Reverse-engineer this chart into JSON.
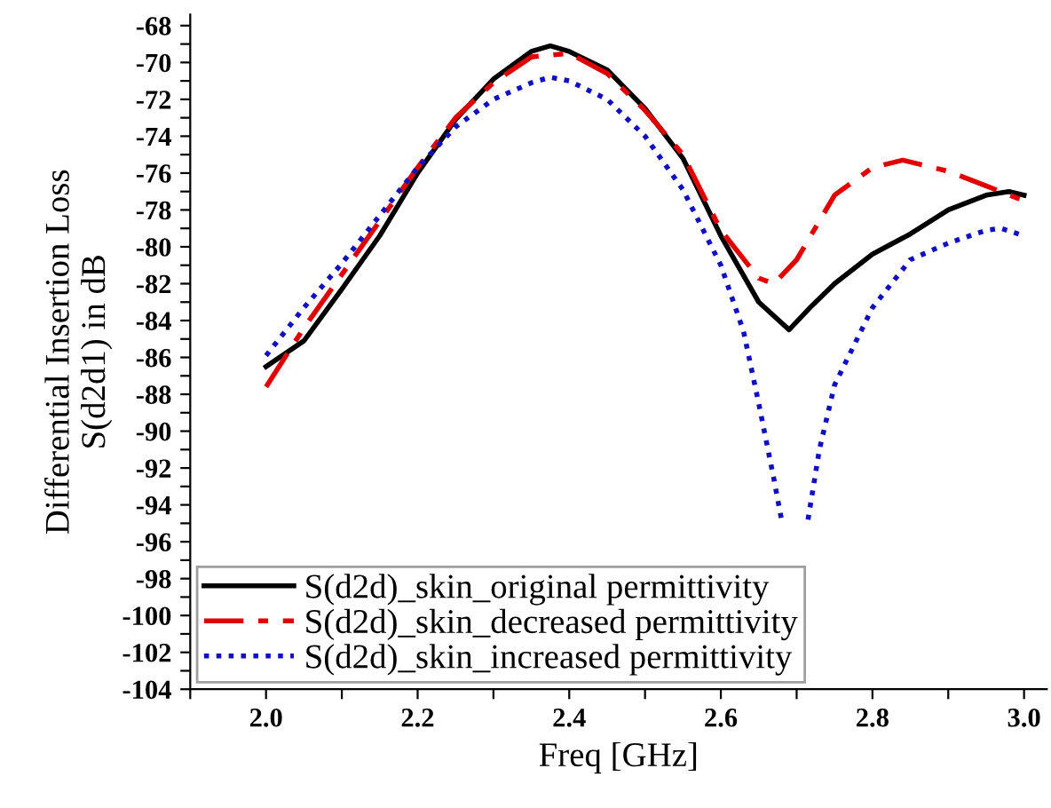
{
  "chart_data": {
    "type": "line",
    "xlabel": "Freq [GHz]",
    "ylabel": "Differential Insertion Loss\nS(d2d1) in dB",
    "xlim": [
      1.9,
      3.03
    ],
    "ylim": [
      -104,
      -67.4
    ],
    "xticks": [
      {
        "value": 1.9,
        "label": null
      },
      {
        "value": 2.0,
        "label": "2.0"
      },
      {
        "value": 2.1,
        "label": null
      },
      2.2,
      {
        "value": 2.3,
        "label": null
      },
      2.4,
      {
        "value": 2.5,
        "label": null
      },
      2.6,
      {
        "value": 2.7,
        "label": null
      },
      2.8,
      {
        "value": 2.9,
        "label": null
      },
      {
        "value": 3.0,
        "label": "3.0"
      }
    ],
    "yticks": [
      -104,
      {
        "value": -103,
        "label": null
      },
      -102,
      {
        "value": -101,
        "label": null
      },
      -100,
      {
        "value": -99,
        "label": null
      },
      -98,
      {
        "value": -97,
        "label": null
      },
      -96,
      {
        "value": -95,
        "label": null
      },
      -94,
      {
        "value": -93,
        "label": null
      },
      -92,
      {
        "value": -91,
        "label": null
      },
      -90,
      {
        "value": -89,
        "label": null
      },
      -88,
      {
        "value": -87,
        "label": null
      },
      -86,
      {
        "value": -85,
        "label": null
      },
      -84,
      {
        "value": -83,
        "label": null
      },
      -82,
      {
        "value": -81,
        "label": null
      },
      -80,
      {
        "value": -79,
        "label": null
      },
      -78,
      {
        "value": -77,
        "label": null
      },
      -76,
      {
        "value": -75,
        "label": null
      },
      -74,
      {
        "value": -73,
        "label": null
      },
      -72,
      {
        "value": -71,
        "label": null
      },
      -70,
      {
        "value": -69,
        "label": null
      },
      -68
    ],
    "grid": false,
    "legend": "bottom left",
    "marker": "none",
    "series": [
      {
        "name": "S(d2d)_skin_original permittivity",
        "color": "#000000",
        "line_style": "solid",
        "x": [
          2.0,
          2.05,
          2.1,
          2.15,
          2.2,
          2.25,
          2.3,
          2.35,
          2.375,
          2.4,
          2.45,
          2.5,
          2.55,
          2.6,
          2.65,
          2.69,
          2.72,
          2.75,
          2.8,
          2.85,
          2.9,
          2.95,
          2.98,
          3.0
        ],
        "values": [
          -86.5,
          -85.1,
          -82.3,
          -79.4,
          -76.0,
          -73.1,
          -70.9,
          -69.4,
          -69.1,
          -69.4,
          -70.4,
          -72.5,
          -75.2,
          -79.4,
          -83.0,
          -84.5,
          -83.2,
          -82.0,
          -80.4,
          -79.3,
          -78.0,
          -77.2,
          -77.0,
          -77.2
        ]
      },
      {
        "name": "S(d2d)_skin_decreased permittivity",
        "color": "#e00000",
        "line_style": "dashdot",
        "x": [
          2.0,
          2.05,
          2.1,
          2.15,
          2.2,
          2.25,
          2.3,
          2.35,
          2.4,
          2.45,
          2.5,
          2.55,
          2.6,
          2.65,
          2.67,
          2.7,
          2.75,
          2.8,
          2.84,
          2.9,
          2.95,
          3.0
        ],
        "values": [
          -87.6,
          -84.4,
          -81.5,
          -78.6,
          -75.7,
          -73.0,
          -71.1,
          -69.7,
          -69.5,
          -70.6,
          -72.6,
          -75.0,
          -79.1,
          -81.7,
          -82.0,
          -80.7,
          -77.2,
          -75.7,
          -75.3,
          -75.9,
          -76.7,
          -77.5
        ]
      },
      {
        "name": "S(d2d)_skin_increased permittivity",
        "color": "#1010c0",
        "line_style": "dotted",
        "x": [
          2.0,
          2.05,
          2.1,
          2.15,
          2.2,
          2.25,
          2.3,
          2.35,
          2.375,
          2.4,
          2.45,
          2.5,
          2.55,
          2.6,
          2.63,
          2.65,
          2.67,
          2.68,
          2.7,
          2.715,
          2.73,
          2.75,
          2.8,
          2.85,
          2.9,
          2.95,
          2.97,
          3.0
        ],
        "values": [
          -85.9,
          -83.3,
          -80.9,
          -78.3,
          -75.7,
          -73.5,
          -72.0,
          -71.1,
          -70.8,
          -71.0,
          -72.0,
          -74.0,
          -76.9,
          -81.0,
          -84.6,
          -88.5,
          -92.6,
          -94.8,
          null,
          -94.8,
          -91.0,
          -87.5,
          -83.3,
          -80.7,
          -79.8,
          -79.1,
          -79.0,
          -79.4
        ]
      }
    ]
  }
}
